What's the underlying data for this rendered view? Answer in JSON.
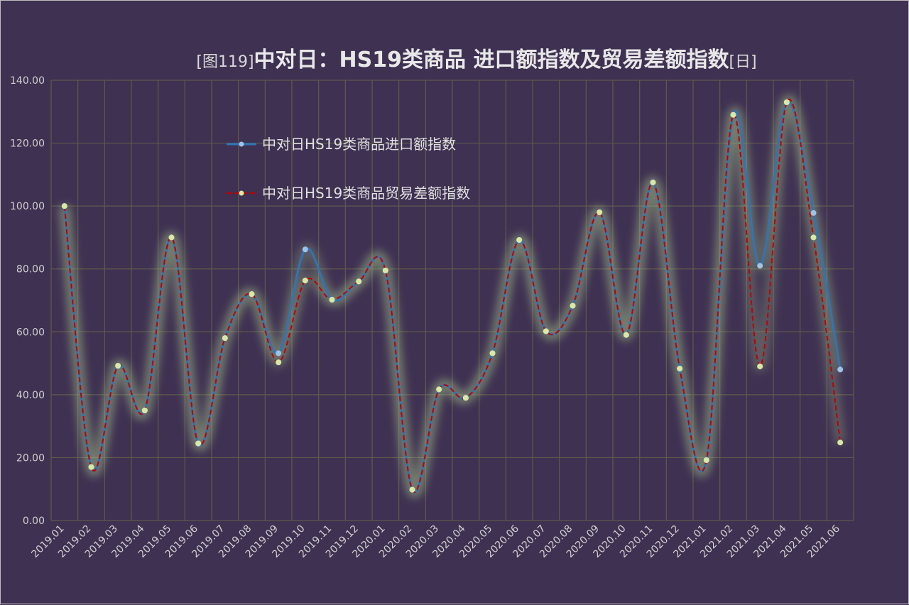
{
  "chart_data": {
    "type": "line",
    "title_prefix": "[图119]",
    "title_main": "中对日：HS19类商品 进口额指数及贸易差额指数",
    "title_suffix": "[日]",
    "categories": [
      "2019.01",
      "2019.02",
      "2019.03",
      "2019.04",
      "2019.05",
      "2019.06",
      "2019.07",
      "2019.08",
      "2019.09",
      "2019.10",
      "2019.11",
      "2019.12",
      "2020.01",
      "2020.02",
      "2020.03",
      "2020.04",
      "2020.05",
      "2020.06",
      "2020.07",
      "2020.08",
      "2020.09",
      "2020.10",
      "2020.11",
      "2020.12",
      "2021.01",
      "2021.02",
      "2021.03",
      "2021.04",
      "2021.05",
      "2021.06"
    ],
    "y_ticks": [
      "0.00",
      "20.00",
      "40.00",
      "60.00",
      "80.00",
      "100.00",
      "120.00",
      "140.00"
    ],
    "ylim": [
      0,
      140
    ],
    "grid": true,
    "legend_position": "upper-left-inside",
    "series": [
      {
        "name": "中对日HS19类商品进口额指数",
        "color": "#2e75b6",
        "marker": "#9dc3e6",
        "values": [
          100.0,
          17.0,
          49.2,
          35.0,
          90.0,
          24.5,
          58.0,
          72.0,
          53.2,
          86.2,
          70.2,
          76.0,
          79.5,
          9.8,
          41.7,
          39.0,
          53.2,
          89.2,
          60.2,
          68.3,
          98.0,
          59.0,
          107.5,
          48.3,
          19.2,
          129.0,
          81.0,
          133.0,
          97.8,
          48.0
        ]
      },
      {
        "name": "中对日HS19类商品贸易差额指数",
        "color": "#c00000",
        "marker": "#d9e8a5",
        "values": [
          100.0,
          17.0,
          49.2,
          35.0,
          90.0,
          24.5,
          58.0,
          72.0,
          50.3,
          76.3,
          70.2,
          76.0,
          79.5,
          9.8,
          41.7,
          39.0,
          53.2,
          89.2,
          60.2,
          68.3,
          98.0,
          59.0,
          107.5,
          48.3,
          19.2,
          129.0,
          49.0,
          133.0,
          90.0,
          24.8
        ]
      }
    ]
  }
}
